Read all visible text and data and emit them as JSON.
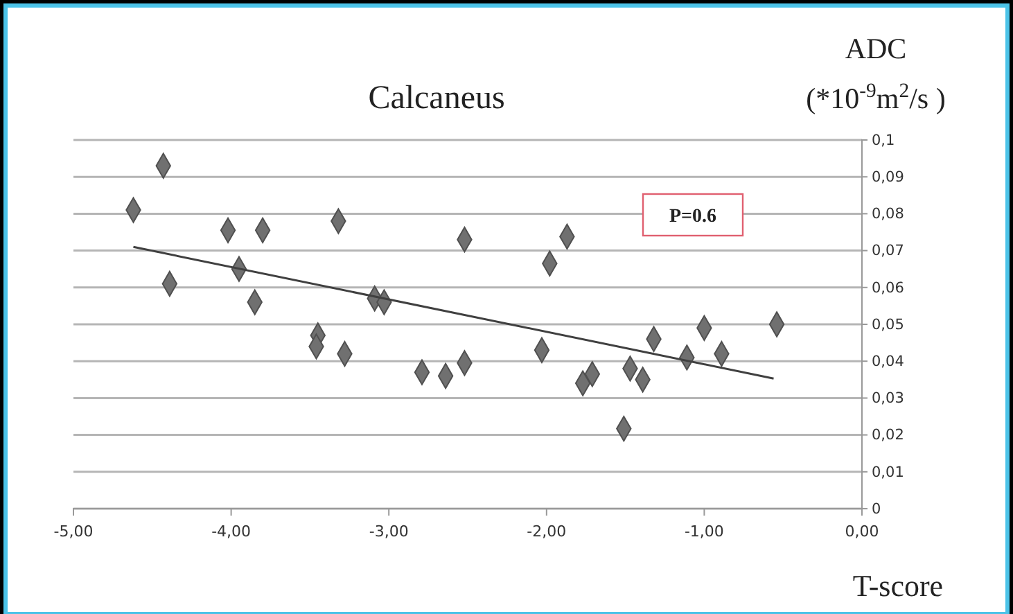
{
  "chart_data": {
    "type": "scatter",
    "title": "Calcaneus",
    "xlabel": "T-score",
    "ylabel": "ADC (*10$^{-9}$m$^{2}$/s )",
    "annotations": [
      "P=0.6"
    ],
    "series": [
      {
        "type": "scatter",
        "color": "#707070",
        "marker": "diamond",
        "x": [
          -4.62,
          -4.43,
          -4.39,
          -4.02,
          -3.95,
          -3.85,
          -3.8,
          -3.45,
          -3.46,
          -3.32,
          -3.28,
          -3.09,
          -3.03,
          -2.79,
          -2.64,
          -2.52,
          -2.52,
          -2.03,
          -1.98,
          -1.87,
          -1.77,
          -1.71,
          -1.47,
          -1.39,
          -1.51,
          -1.32,
          -1.11,
          -1.0,
          -0.89,
          -0.54
        ],
        "values": [
          0.081,
          0.093,
          0.061,
          0.0755,
          0.065,
          0.056,
          0.0755,
          0.047,
          0.044,
          0.078,
          0.042,
          0.057,
          0.056,
          0.037,
          0.036,
          0.073,
          0.0395,
          0.043,
          0.0665,
          0.0738,
          0.034,
          0.0365,
          0.038,
          0.035,
          0.0217,
          0.046,
          0.041,
          0.049,
          0.042,
          0.05
        ]
      },
      {
        "type": "line",
        "color": "#404040",
        "x": [
          -4.62,
          -0.56
        ],
        "values": [
          0.071,
          0.0353
        ]
      }
    ],
    "xlim": [
      -5,
      0
    ],
    "xticks": [
      {
        "value": -5,
        "label": "-5,00"
      },
      {
        "value": -4,
        "label": "-4,00"
      },
      {
        "value": -3,
        "label": "-3,00"
      },
      {
        "value": -2,
        "label": "-2,00"
      },
      {
        "value": -1,
        "label": "-1,00"
      },
      {
        "value": 0,
        "label": "0,00"
      }
    ],
    "ylim": [
      0,
      0.1
    ],
    "yticks": [
      0,
      {
        "value": 0.01,
        "label": "0,01"
      },
      {
        "value": 0.02,
        "label": "0,02"
      },
      {
        "value": 0.03,
        "label": "0,03"
      },
      {
        "value": 0.04,
        "label": "0,04"
      },
      {
        "value": 0.05,
        "label": "0,05"
      },
      {
        "value": 0.06,
        "label": "0,06"
      },
      {
        "value": 0.07,
        "label": "0,07"
      },
      {
        "value": 0.08,
        "label": "0,08"
      },
      {
        "value": 0.09,
        "label": "0,09"
      },
      {
        "value": 0.1,
        "label": "0,1"
      }
    ],
    "grid": "y"
  }
}
